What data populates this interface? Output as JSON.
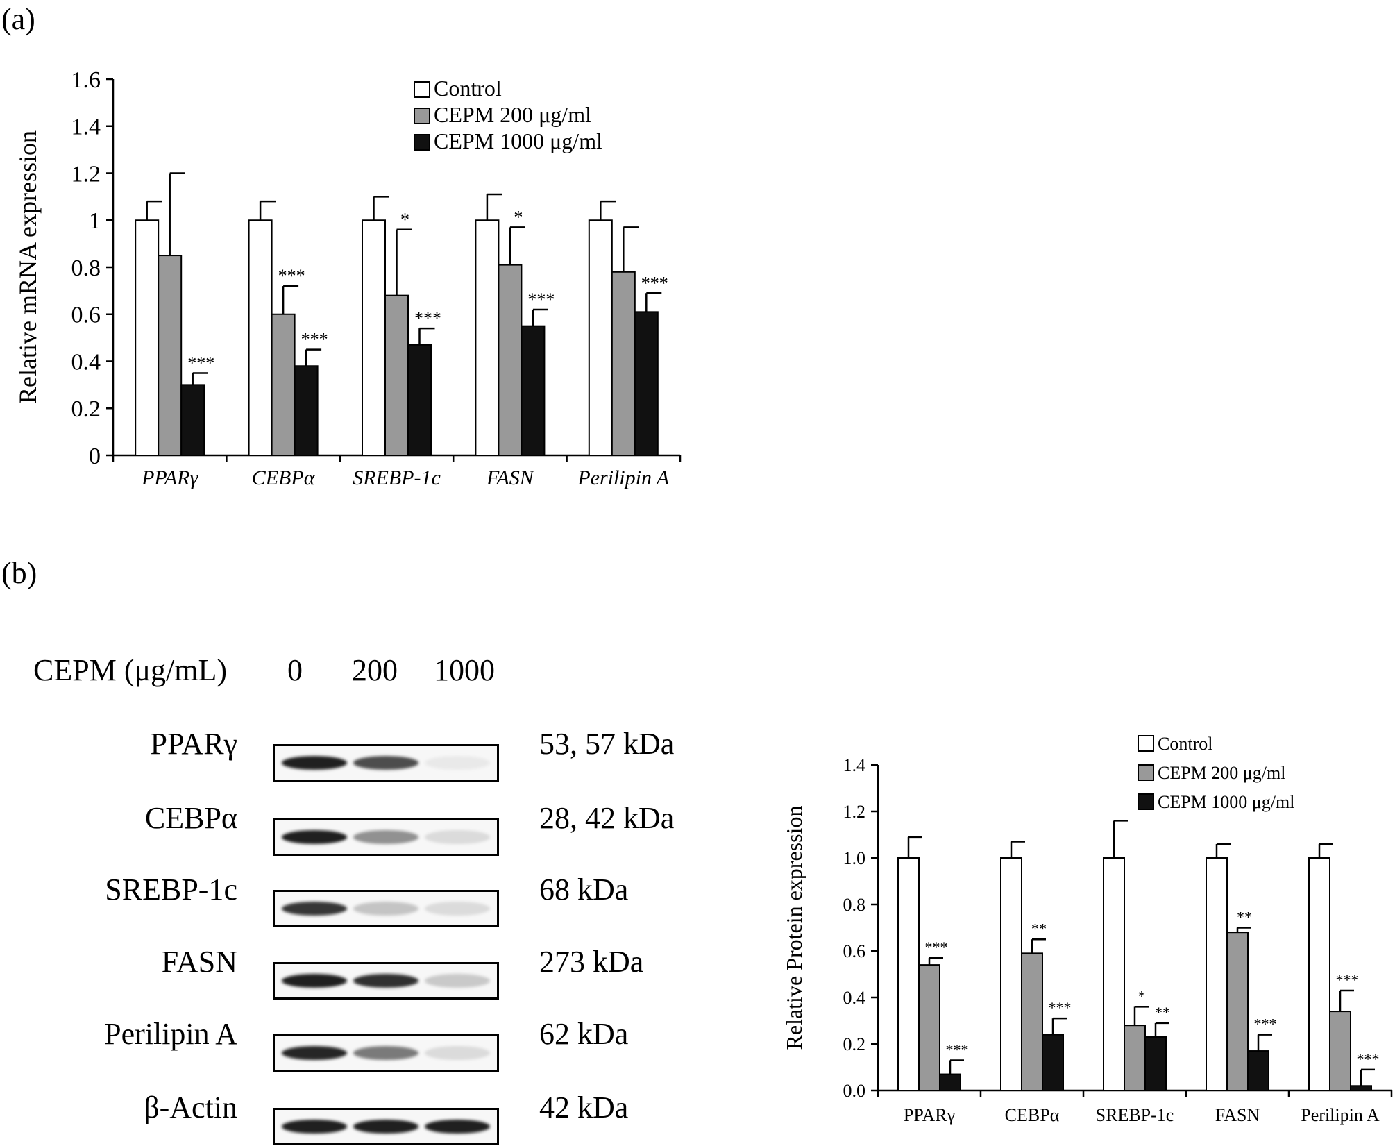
{
  "panel_a": {
    "label": "(a)",
    "chart_data": {
      "type": "bar",
      "ylabel": "Relative mRNA expression",
      "ylim": [
        0,
        1.6
      ],
      "yticks": [
        "0",
        "0.2",
        "0.4",
        "0.6",
        "0.8",
        "1",
        "1.2",
        "1.4",
        "1.6"
      ],
      "ytick_values": [
        0,
        0.2,
        0.4,
        0.6,
        0.8,
        1.0,
        1.2,
        1.4,
        1.6
      ],
      "categories": [
        "PPARγ",
        "CEBPα",
        "SREBP-1c",
        "FASN",
        "Perilipin A"
      ],
      "category_style": "italic",
      "legend_position": "top-right",
      "series": [
        {
          "name": "Control",
          "color": "#ffffff",
          "values": [
            1.0,
            1.0,
            1.0,
            1.0,
            1.0
          ],
          "errors": [
            0.08,
            0.08,
            0.1,
            0.11,
            0.08
          ],
          "labels": [
            "",
            "",
            "",
            "",
            ""
          ]
        },
        {
          "name": "CEPM 200 μg/ml",
          "color": "#999999",
          "values": [
            0.85,
            0.6,
            0.68,
            0.81,
            0.78
          ],
          "errors": [
            0.35,
            0.12,
            0.28,
            0.16,
            0.19
          ],
          "labels": [
            "",
            "***",
            "*",
            "*",
            ""
          ]
        },
        {
          "name": "CEPM 1000 μg/ml",
          "color": "#111111",
          "values": [
            0.3,
            0.38,
            0.47,
            0.55,
            0.61
          ],
          "errors": [
            0.05,
            0.07,
            0.07,
            0.07,
            0.08
          ],
          "labels": [
            "***",
            "***",
            "***",
            "***",
            "***"
          ]
        }
      ]
    }
  },
  "panel_b": {
    "label": "(b)",
    "western_blot": {
      "dose_label": "CEPM (μg/mL)",
      "doses": [
        "0",
        "200",
        "1000"
      ],
      "rows": [
        {
          "protein": "PPARγ",
          "size": "53, 57 kDa",
          "band_intensity": [
            0.95,
            0.75,
            0.06
          ]
        },
        {
          "protein": "CEBPα",
          "size": "28, 42 kDa",
          "band_intensity": [
            0.95,
            0.45,
            0.12
          ]
        },
        {
          "protein": "SREBP-1c",
          "size": "68 kDa",
          "band_intensity": [
            0.85,
            0.22,
            0.12
          ]
        },
        {
          "protein": "FASN",
          "size": "273 kDa",
          "band_intensity": [
            0.95,
            0.88,
            0.2
          ]
        },
        {
          "protein": "Perilipin A",
          "size": "62 kDa",
          "band_intensity": [
            0.92,
            0.55,
            0.12
          ]
        },
        {
          "protein": "β-Actin",
          "size": "42 kDa",
          "band_intensity": [
            0.95,
            0.95,
            0.95
          ]
        }
      ]
    },
    "chart_data": {
      "type": "bar",
      "ylabel": "Relative Protein expression",
      "ylim": [
        0,
        1.4
      ],
      "yticks": [
        "0.0",
        "0.2",
        "0.4",
        "0.6",
        "0.8",
        "1.0",
        "1.2",
        "1.4"
      ],
      "ytick_values": [
        0,
        0.2,
        0.4,
        0.6,
        0.8,
        1.0,
        1.2,
        1.4
      ],
      "categories": [
        "PPARγ",
        "CEBPα",
        "SREBP-1c",
        "FASN",
        "Perilipin A"
      ],
      "category_style": "normal",
      "legend_position": "top-right",
      "series": [
        {
          "name": "Control",
          "color": "#ffffff",
          "values": [
            1.0,
            1.0,
            1.0,
            1.0,
            1.0
          ],
          "errors": [
            0.09,
            0.07,
            0.16,
            0.06,
            0.06
          ],
          "labels": [
            "",
            "",
            "",
            "",
            ""
          ]
        },
        {
          "name": "CEPM 200 μg/ml",
          "color": "#999999",
          "values": [
            0.54,
            0.59,
            0.28,
            0.68,
            0.34
          ],
          "errors": [
            0.03,
            0.06,
            0.08,
            0.02,
            0.09
          ],
          "labels": [
            "***",
            "**",
            "*",
            "**",
            "***"
          ]
        },
        {
          "name": "CEPM 1000 μg/ml",
          "color": "#111111",
          "values": [
            0.07,
            0.24,
            0.23,
            0.17,
            0.02
          ],
          "errors": [
            0.06,
            0.07,
            0.06,
            0.07,
            0.07
          ],
          "labels": [
            "***",
            "***",
            "**",
            "***",
            "***"
          ]
        }
      ]
    }
  }
}
